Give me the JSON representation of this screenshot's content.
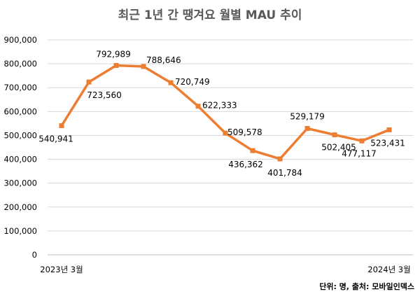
{
  "chart_data": {
    "type": "line",
    "title": "최근 1년 간 땡겨요 월별 MAU 추이",
    "xlabel": "",
    "ylabel": "",
    "x_start_label": "2023년 3월",
    "x_end_label": "2024년 3월",
    "ylim": [
      0,
      900000
    ],
    "ytick_step": 100000,
    "ytick_labels": [
      "0",
      "100,000",
      "200,000",
      "300,000",
      "400,000",
      "500,000",
      "600,000",
      "700,000",
      "800,000",
      "900,000"
    ],
    "grid": true,
    "legend": "none",
    "series": [
      {
        "values": [
          540941,
          723560,
          792989,
          788646,
          720749,
          622333,
          509578,
          436362,
          401784,
          529179,
          502405,
          477117,
          523431
        ],
        "labels": [
          "540,941",
          "723,560",
          "792,989",
          "788,646",
          "720,749",
          "622,333",
          "509,578",
          "436,362",
          "401,784",
          "529,179",
          "502,405",
          "477,117",
          "523,431"
        ],
        "color": "#ED7D31"
      }
    ],
    "note": "단위: 명, 출처: 모바일인덱스"
  }
}
